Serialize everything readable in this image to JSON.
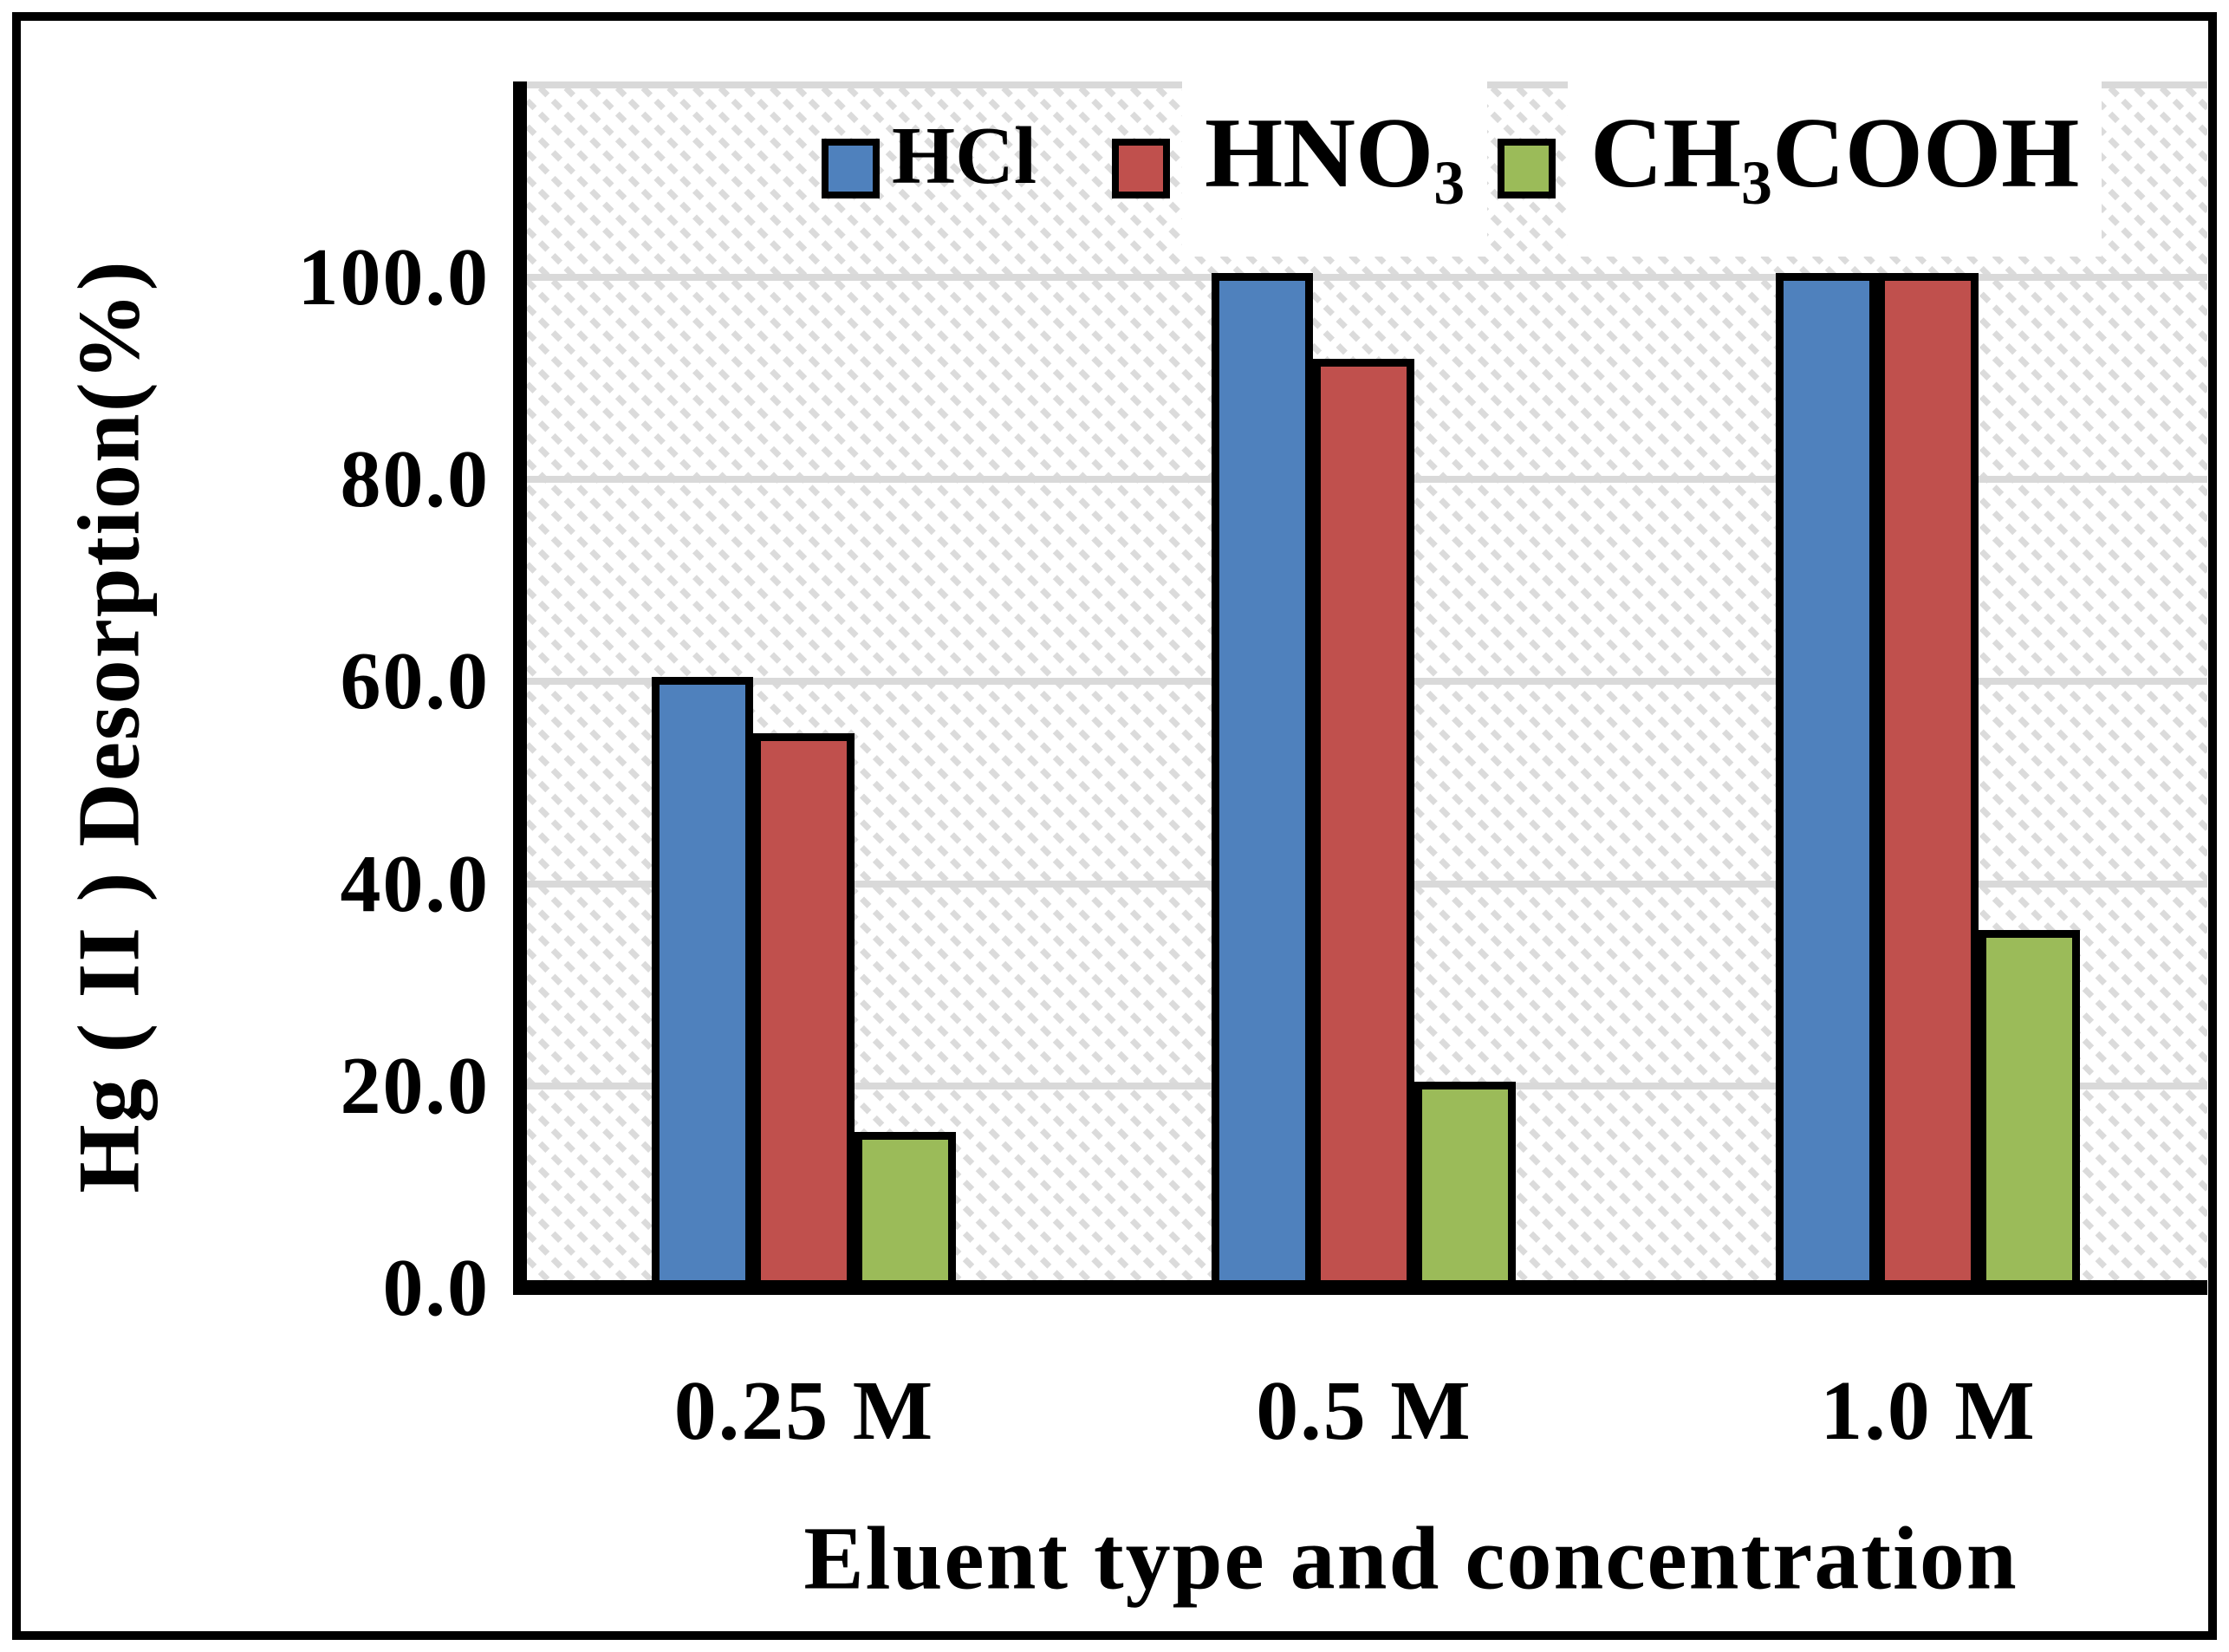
{
  "chart_data": {
    "type": "bar",
    "title": "",
    "categories": [
      "0.25 M",
      "0.5 M",
      "1.0 M"
    ],
    "series": [
      {
        "name": "HCl",
        "color": "#4F81BD",
        "values": [
          60.0,
          100.0,
          100.0
        ]
      },
      {
        "name": "HNO3",
        "color": "#C0504D",
        "values": [
          54.5,
          91.5,
          100.0
        ]
      },
      {
        "name": "CH3COOH",
        "color": "#9BBB59",
        "values": [
          15.0,
          20.0,
          35.0
        ]
      }
    ],
    "xlabel": "Eluent type and concentration",
    "ylabel": "Hg ( II ) Desorption(%)",
    "ylim": [
      0,
      100
    ],
    "yticks": {
      "values": [
        0,
        20,
        40,
        60,
        80,
        100
      ],
      "labels": [
        "0.0",
        "20.0",
        "40.0",
        "60.0",
        "80.0",
        "100.0"
      ]
    },
    "grid": "horizontal",
    "legend_position": "top-center",
    "plot_background": "white with light-gray diagonal dashed hatch"
  },
  "legend": {
    "items": [
      {
        "pre": "HCl",
        "sub": "",
        "post": "",
        "color": "#4F81BD"
      },
      {
        "pre": "HNO",
        "sub": "3",
        "post": "",
        "color": "#C0504D"
      },
      {
        "pre": "CH",
        "sub": "3",
        "post": "COOH",
        "color": "#9BBB59"
      }
    ]
  },
  "colors": {
    "gridline": "#D9D9D9",
    "axis": "#000000",
    "hatch": "#DBDBDB",
    "text": "#000000",
    "figure_border": "#000000"
  }
}
